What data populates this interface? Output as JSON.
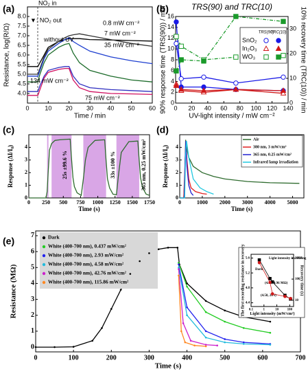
{
  "chart_data": [
    {
      "type": "line",
      "panel_label": "(a)",
      "xlabel": "Time / min",
      "ylabel": "Resistance, log(R/Ω)",
      "x": [
        0,
        5,
        6,
        8,
        10,
        15,
        18,
        20,
        22,
        25,
        30,
        40,
        50,
        60
      ],
      "xlim": [
        0,
        60
      ],
      "xticks": [
        0,
        10,
        20,
        30,
        40,
        50,
        60
      ],
      "ylim": [
        3.5,
        8.5
      ],
      "yticks": [
        {
          "value": 4,
          "label": "4.0"
        },
        4.5,
        {
          "value": 5,
          "label": "5.0"
        },
        5.5,
        {
          "value": 6,
          "label": "6.0"
        },
        6.5,
        {
          "value": 7,
          "label": "7.0"
        },
        7.5,
        {
          "value": 8,
          "label": "8.0"
        }
      ],
      "series": [
        {
          "color": "#000000",
          "values": [
            5.4,
            5.4,
            5.6,
            6.0,
            6.4,
            6.7,
            6.8,
            6.85,
            6.85,
            6.85,
            6.8,
            6.78,
            6.75,
            6.72
          ]
        },
        {
          "color": "#333333",
          "values": [
            5.0,
            5.0,
            5.3,
            5.9,
            6.3,
            6.7,
            6.9,
            7.0,
            7.05,
            7.1,
            7.0,
            6.8,
            6.6,
            6.45
          ]
        },
        {
          "color": "#1e3fd0",
          "values": [
            4.9,
            4.9,
            5.2,
            5.8,
            6.2,
            6.6,
            6.8,
            6.9,
            6.7,
            6.5,
            6.2,
            5.9,
            5.7,
            5.55
          ]
        },
        {
          "color": "#1c6b2a",
          "values": [
            4.6,
            4.6,
            5.0,
            5.6,
            6.0,
            6.4,
            6.55,
            6.6,
            6.1,
            5.6,
            5.2,
            4.9,
            4.7,
            4.6
          ]
        },
        {
          "color": "#3030c0",
          "values": [
            4.1,
            4.1,
            4.4,
            4.9,
            5.2,
            5.35,
            5.4,
            5.4,
            4.9,
            4.5,
            4.3,
            4.2,
            4.15,
            4.1
          ]
        },
        {
          "color": "#d01060",
          "values": [
            3.9,
            3.9,
            4.2,
            4.8,
            5.1,
            5.25,
            5.3,
            5.3,
            4.7,
            4.3,
            4.1,
            4.0,
            3.98,
            3.95
          ]
        }
      ],
      "annotations": [
        "NO₂ in",
        "▼: NO₂ out",
        "without UV",
        "0.8 mW cm⁻²",
        "7 mW cm⁻²",
        "35 mW cm⁻²",
        "134 mW cm⁻²",
        "75 mW cm⁻²"
      ]
    },
    {
      "type": "line",
      "panel_label": "(b)",
      "title": "TRS(90) and TRC(10)",
      "xlabel": "UV-light intensity / mW cm⁻²",
      "ylabel": "90% response time (TRS(90)) / min",
      "y2label": "10% recovery time (TRC(10)) / min",
      "x": [
        0.8,
        7,
        35,
        75,
        134
      ],
      "xlim": [
        0,
        140
      ],
      "xticks": [
        0,
        20,
        40,
        60,
        80,
        100,
        120,
        140
      ],
      "ylim": [
        0,
        16
      ],
      "yticks": [
        0,
        2,
        4,
        6,
        8,
        10,
        12,
        14,
        16
      ],
      "y2lim": [
        0,
        35
      ],
      "y2ticks": [
        0,
        10,
        20,
        30
      ],
      "series": [
        {
          "color": "#1a1ae6",
          "marker": "circle-open",
          "line": "solid",
          "values": [
            11,
            4.5,
            4.8,
            3.7,
            4.8
          ]
        },
        {
          "color": "#1a1ae6",
          "marker": "circle-filled",
          "line": "solid",
          "axis": "y2",
          "values": [
            32.8,
            6.5,
            6.5,
            5.5,
            5
          ]
        },
        {
          "color": "#d01818",
          "marker": "tri-open",
          "line": "solid",
          "values": [
            3.5,
            2.3,
            2,
            2.5,
            1.8
          ]
        },
        {
          "color": "#d01818",
          "marker": "tri-filled",
          "line": "solid",
          "axis": "y2",
          "values": [
            7,
            5.5,
            5,
            5.5,
            5
          ]
        },
        {
          "color": "#1a9a2a",
          "marker": "square-open",
          "line": "dashdot",
          "values": [
            12.3,
            10.5,
            8,
            8.5,
            8.8
          ]
        },
        {
          "color": "#1a9a2a",
          "marker": "square-filled",
          "line": "dashdot",
          "axis": "y2",
          "values": [
            13,
            17.5,
            17,
            35,
            33
          ]
        }
      ],
      "legend_table": {
        "headers": [
          "TRS(90)",
          "TRC(10)"
        ],
        "rows": [
          {
            "name": "SnO₂",
            "color": "#1a1ae6",
            "marker": "circle"
          },
          {
            "name": "In₂O₃",
            "color": "#d01818",
            "marker": "tri"
          },
          {
            "name": "WO₃",
            "color": "#1a9a2a",
            "marker": "square"
          }
        ]
      }
    },
    {
      "type": "line",
      "panel_label": "(c)",
      "xlabel": "Time (s)",
      "ylabel": "Response (ΔI/I₀)",
      "x": [
        0,
        250,
        265,
        280,
        300,
        330,
        380,
        450,
        600,
        620,
        640,
        660,
        700,
        760,
        790,
        820,
        860,
        960,
        1100,
        1120,
        1140,
        1170,
        1220,
        1270,
        1300,
        1340,
        1450,
        1580,
        1600,
        1620,
        1650,
        1700,
        1750
      ],
      "xlim": [
        0,
        1750
      ],
      "xticks": [
        0,
        250,
        500,
        750,
        1000,
        1250,
        1500,
        1750
      ],
      "ylim": [
        0,
        5
      ],
      "yticks": [
        0,
        1,
        2,
        3,
        4
      ],
      "uv_spans": [
        [
          265,
          285
        ],
        [
          330,
          620
        ],
        [
          790,
          1120
        ],
        [
          1270,
          1600
        ]
      ],
      "span_color": "#d9a6e6",
      "series": [
        {
          "color": "#2e6b2e",
          "values": [
            0,
            0,
            0.5,
            2.0,
            3.8,
            4.3,
            4.55,
            4.6,
            4.65,
            3.0,
            1.6,
            0.9,
            0.4,
            0.2,
            1.5,
            3.0,
            4.0,
            4.55,
            4.6,
            3.0,
            1.5,
            0.8,
            0.3,
            0.25,
            1.8,
            3.6,
            4.45,
            4.5,
            3.0,
            1.6,
            0.8,
            0.3,
            0.2
          ]
        }
      ],
      "annotations": [
        "25s ±99.6 %",
        "33s ±100 %",
        "365 nm, 0.25 mW/cm²"
      ]
    },
    {
      "type": "line",
      "panel_label": "(d)",
      "xlabel": "Time (s)",
      "ylabel": "Response (ΔI/I₀)",
      "xlim": [
        0,
        5500
      ],
      "xticks": [
        0,
        1000,
        2000,
        3000,
        4000,
        5000
      ],
      "ylim": [
        0,
        5
      ],
      "yticks": [
        0,
        1,
        2,
        3,
        4
      ],
      "legend": true,
      "series": [
        {
          "name": "Air",
          "color": "#2e6b2e",
          "x": [
            0,
            180,
            230,
            260,
            300,
            400,
            600,
            1000,
            1500,
            2000,
            3000,
            4000,
            5300
          ],
          "values": [
            0,
            0,
            2,
            4.6,
            4.0,
            3.2,
            2.5,
            2.0,
            1.7,
            1.5,
            1.3,
            1.2,
            1.15
          ]
        },
        {
          "name": "380 nm, 3 mW/cm²",
          "color": "#e02020",
          "x": [
            0,
            180,
            230,
            270,
            320,
            400,
            500,
            700,
            1000,
            1200
          ],
          "values": [
            0,
            0,
            2.5,
            4.4,
            3.0,
            1.5,
            0.8,
            0.5,
            0.35,
            0.3
          ]
        },
        {
          "name": "365 nm, 0.25 mW/cm²",
          "color": "#2020d0",
          "x": [
            0,
            200,
            240,
            270,
            320,
            400,
            500,
            600
          ],
          "values": [
            0,
            0,
            3,
            4.5,
            2.5,
            1.0,
            0.4,
            0.2
          ]
        },
        {
          "name": "Infrared lamp irradiation",
          "color": "#20c8e0",
          "x": [
            0,
            220,
            260,
            300,
            400,
            600,
            900,
            1200,
            1500
          ],
          "values": [
            0,
            0,
            3.5,
            4.5,
            3.2,
            1.5,
            0.8,
            0.5,
            0.3
          ]
        }
      ]
    },
    {
      "type": "line",
      "panel_label": "(e)",
      "xlabel": "Time (s)",
      "ylabel": "Resistance (MΩ)",
      "xlim": [
        0,
        700
      ],
      "xticks": [
        0,
        100,
        200,
        300,
        400,
        500,
        600,
        700
      ],
      "ylim": [
        -0.3,
        7.3
      ],
      "yticks": [
        0,
        1,
        2,
        3,
        4,
        5,
        6,
        7
      ],
      "legend": true,
      "series": [
        {
          "name": "Dark",
          "color": "#000000",
          "marker": "dot",
          "x": [
            0,
            50,
            100,
            150,
            175,
            200,
            225,
            250,
            275,
            300,
            325,
            350,
            375,
            380,
            400,
            450,
            500,
            550,
            620
          ],
          "values": [
            0,
            0,
            0.02,
            0.4,
            1.2,
            2.4,
            3.6,
            4.6,
            5.4,
            5.9,
            6.15,
            6.25,
            6.25,
            5.2,
            4.0,
            2.9,
            2.3,
            1.9,
            1.6
          ]
        },
        {
          "name": "White (400-700 nm), 0.437 mW/cm²",
          "color": "#22cc22",
          "marker": "dot",
          "x": [
            378,
            400,
            450,
            500,
            550,
            620
          ],
          "values": [
            5.3,
            3.8,
            2.2,
            1.6,
            1.2,
            0.9
          ]
        },
        {
          "name": "White (400-700 nm), 2.93 mW/cm²",
          "color": "#2222ee",
          "marker": "dot",
          "x": [
            378,
            400,
            450,
            500,
            550,
            620
          ],
          "values": [
            5.2,
            2.5,
            1.0,
            0.5,
            0.3,
            0.2
          ]
        },
        {
          "name": "White (400-700 nm), 4.58 mW/cm²",
          "color": "#22bbdd",
          "marker": "dot",
          "x": [
            378,
            400,
            450,
            500,
            550,
            620
          ],
          "values": [
            5.0,
            2.0,
            0.6,
            0.3,
            0.2,
            0.15
          ]
        },
        {
          "name": "White (400-700 nm), 42.76 mW/cm²",
          "color": "#cc22cc",
          "marker": "dot",
          "x": [
            378,
            390,
            410,
            450,
            480
          ],
          "values": [
            4.9,
            1.5,
            0.4,
            0.15,
            0.1
          ]
        },
        {
          "name": "White (400-700 nm), 115.86 mW/cm²",
          "color": "#ff8822",
          "marker": "dot",
          "x": [
            378,
            385,
            395,
            420,
            450
          ],
          "values": [
            4.5,
            1.0,
            0.3,
            0.1,
            0.05
          ]
        }
      ]
    },
    {
      "type": "line",
      "xlabel": "Light intensity (mW/cm²)",
      "ylabel": "The first recording resistance in recovery",
      "y2label": "Recovery time (s)",
      "ylabel_color": "#1a9a2a",
      "y2label_color": "#d01818",
      "x": [
        0.437,
        2.93,
        4.58,
        42.76,
        115.86
      ],
      "xlim": [
        0.1,
        200
      ],
      "xticks": [
        0.1,
        1,
        10,
        100
      ],
      "xlog": true,
      "ylim": [
        4.3,
        5.7
      ],
      "yticks": [
        4.4,
        4.8,
        5.2,
        5.6
      ],
      "y2lim": [
        5,
        1500
      ],
      "y2ticks": [
        10,
        100,
        1000
      ],
      "y2log": true,
      "series": [
        {
          "color": "#000000",
          "marker": "square-filled",
          "line": "solid",
          "values": [
            5.55,
            5.05,
            4.96,
            4.6,
            4.5
          ]
        },
        {
          "color": "#d01818",
          "marker": "circle-filled",
          "line": "solid",
          "axis": "y2",
          "values": [
            600,
            70,
            20,
            15,
            12
          ]
        }
      ],
      "annotations": [
        "Dark",
        "Light intensity increasing",
        "(4.58, 4.96 MΩ)",
        "(4.58, 20 s)"
      ]
    }
  ]
}
